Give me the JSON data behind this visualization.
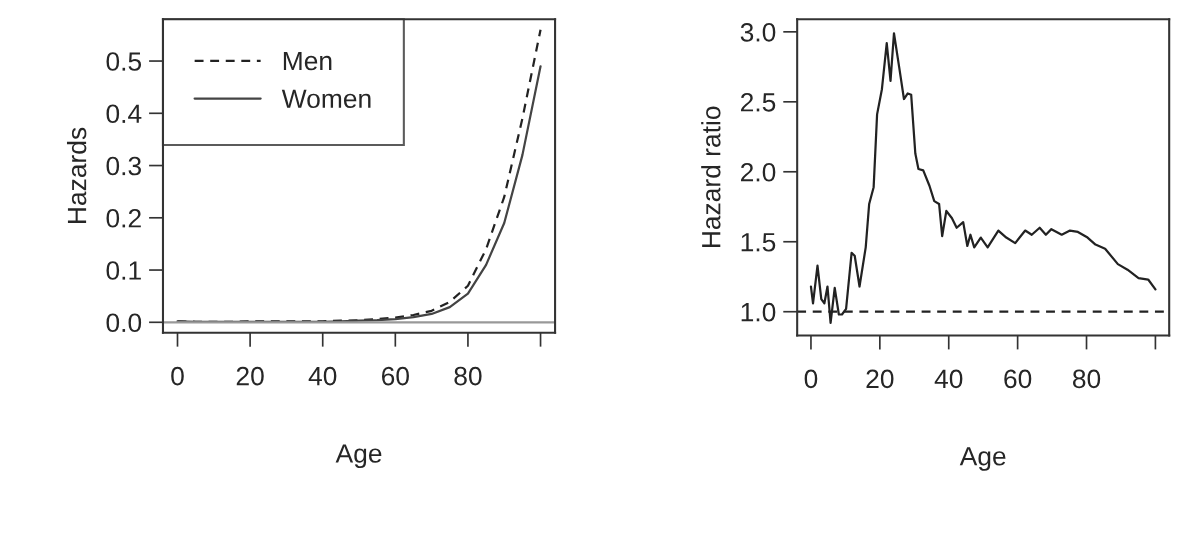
{
  "chart_data": [
    {
      "type": "line",
      "xlabel": "Age",
      "ylabel": "Hazards",
      "xlim": [
        -4,
        104
      ],
      "ylim": [
        -0.02,
        0.58
      ],
      "xticks": [
        0,
        20,
        40,
        60,
        80,
        {
          "value": 100,
          "label": null
        }
      ],
      "yticks": [
        {
          "value": 0,
          "label": "0.0"
        },
        0.1,
        0.2,
        0.3,
        0.4,
        0.5
      ],
      "x": [
        0,
        5,
        10,
        15,
        20,
        25,
        30,
        35,
        40,
        45,
        50,
        55,
        60,
        65,
        70,
        75,
        80,
        85,
        90,
        95,
        100
      ],
      "series": [
        {
          "name": "Men",
          "color": "#222222",
          "line_style": "dashed",
          "values": [
            0.002,
            0.001,
            0.001,
            0.001,
            0.002,
            0.002,
            0.002,
            0.002,
            0.002,
            0.003,
            0.004,
            0.006,
            0.009,
            0.014,
            0.022,
            0.039,
            0.07,
            0.14,
            0.24,
            0.39,
            0.56
          ]
        },
        {
          "name": "Women",
          "color": "#444444",
          "line_style": "solid",
          "values": [
            0.002,
            0.001,
            0.001,
            0.001,
            0.001,
            0.001,
            0.001,
            0.001,
            0.001,
            0.002,
            0.003,
            0.004,
            0.006,
            0.01,
            0.016,
            0.029,
            0.055,
            0.11,
            0.19,
            0.32,
            0.49
          ]
        }
      ],
      "ref_lines": [
        {
          "axis": "y",
          "value": 0,
          "color": "#999999",
          "line_style": "solid"
        }
      ],
      "legend": "top left",
      "grid": false
    },
    {
      "type": "line",
      "xlabel": "Age",
      "ylabel": "Hazard ratio",
      "xlim": [
        -4,
        104
      ],
      "ylim": [
        0.83,
        3.09
      ],
      "xticks": [
        0,
        20,
        40,
        60,
        80,
        {
          "value": 100,
          "label": null
        }
      ],
      "yticks": [
        {
          "value": 1,
          "label": "1.0"
        },
        1.5,
        {
          "value": 2,
          "label": "2.0"
        },
        2.5,
        {
          "value": 3,
          "label": "3.0"
        }
      ],
      "x": [
        0,
        0.6,
        1.9,
        3,
        3.9,
        4.8,
        5.7,
        6.9,
        8.1,
        9,
        10.2,
        11.8,
        12.7,
        14.1,
        15.9,
        16.9,
        18.2,
        19.2,
        20.6,
        22,
        23.1,
        24.1,
        25.6,
        27,
        28.1,
        29.1,
        30.3,
        31.2,
        32.6,
        34.4,
        35.8,
        37.2,
        38.1,
        39.3,
        40.9,
        42.3,
        44.2,
        45.4,
        46.3,
        47.4,
        49.3,
        51.3,
        54.4,
        56.7,
        59.3,
        62.2,
        64.1,
        66.4,
        68.2,
        69.8,
        72.8,
        75.2,
        77.5,
        80.3,
        82.6,
        85.4,
        89.1,
        91.9,
        95.1,
        97.9,
        100
      ],
      "series": [
        {
          "color": "#222222",
          "line_style": "solid",
          "values": [
            1.18,
            1.06,
            1.33,
            1.09,
            1.06,
            1.18,
            0.92,
            1.17,
            0.98,
            0.98,
            1.02,
            1.42,
            1.4,
            1.18,
            1.46,
            1.77,
            1.89,
            2.41,
            2.59,
            2.92,
            2.65,
            2.99,
            2.75,
            2.52,
            2.56,
            2.55,
            2.13,
            2.02,
            2.01,
            1.9,
            1.79,
            1.77,
            1.54,
            1.72,
            1.67,
            1.6,
            1.64,
            1.47,
            1.55,
            1.46,
            1.53,
            1.46,
            1.58,
            1.53,
            1.49,
            1.58,
            1.55,
            1.6,
            1.55,
            1.59,
            1.55,
            1.58,
            1.57,
            1.53,
            1.48,
            1.45,
            1.34,
            1.3,
            1.24,
            1.23,
            1.16
          ]
        }
      ],
      "ref_lines": [
        {
          "axis": "y",
          "value": 1,
          "color": "#222222",
          "line_style": "dashed"
        }
      ],
      "grid": false
    }
  ]
}
